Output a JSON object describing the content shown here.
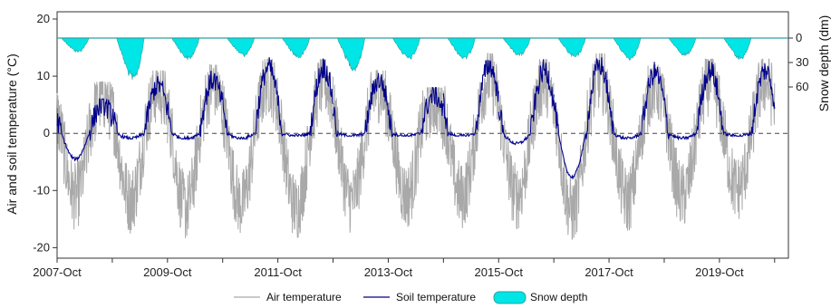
{
  "chart_data": {
    "type": "line",
    "title": "",
    "ylabel": "Air and soil temperature (°C)",
    "y2label": "Snow depth (dm)",
    "ylim": [
      -22,
      20
    ],
    "y_ticks": [
      -20,
      -10,
      0,
      10,
      20
    ],
    "y2lim": [
      0,
      95
    ],
    "y2_ticks": [
      0,
      30,
      60
    ],
    "x_tick_labels": [
      "2007-Oct",
      "2009-Oct",
      "2011-Oct",
      "2013-Oct",
      "2015-Oct",
      "2017-Oct",
      "2019-Oct"
    ],
    "x_tick_years": [
      2007.75,
      2008.75,
      2009.75,
      2010.75,
      2011.75,
      2012.75,
      2013.75,
      2014.75,
      2015.75,
      2016.75,
      2017.75,
      2018.75,
      2019.75,
      2020.75
    ],
    "xlim": [
      2007.75,
      2021.0
    ],
    "reference_line_y": 0,
    "legend_position": "bottom",
    "legend": [
      "Air temperature",
      "Soil temperature",
      "Snow depth"
    ],
    "colors": {
      "air": "#a9a9a9",
      "soil": "#00008b",
      "snow": "#00e5e5",
      "snow_outline": "#2fa0a0"
    },
    "series": [
      {
        "name": "Air temperature",
        "key": "air",
        "winter_min": [
          -17,
          -18,
          -20,
          -19,
          -20,
          -18,
          -17,
          -17,
          -17,
          -21,
          -18,
          -17,
          -15
        ],
        "summer_max": [
          9,
          11,
          12,
          13,
          13,
          11,
          8,
          14,
          13,
          14,
          12,
          13,
          13
        ]
      },
      {
        "name": "Soil temperature",
        "key": "soil",
        "winter_min": [
          -5,
          -1,
          -1,
          -1,
          -0.5,
          -0.5,
          -0.5,
          -0.5,
          -2,
          -8.5,
          -1,
          -1,
          -0.5
        ],
        "summer_max": [
          6,
          10,
          11,
          13.5,
          13.5,
          11,
          8,
          14,
          13,
          14,
          12.5,
          13,
          13
        ]
      },
      {
        "name": "Snow depth",
        "key": "snow",
        "winter_peak_dm": [
          20,
          60,
          30,
          25,
          28,
          45,
          30,
          30,
          25,
          28,
          30,
          25,
          30
        ]
      }
    ]
  },
  "legend": {
    "air_label": "Air temperature",
    "soil_label": "Soil temperature",
    "snow_label": "Snow depth"
  }
}
